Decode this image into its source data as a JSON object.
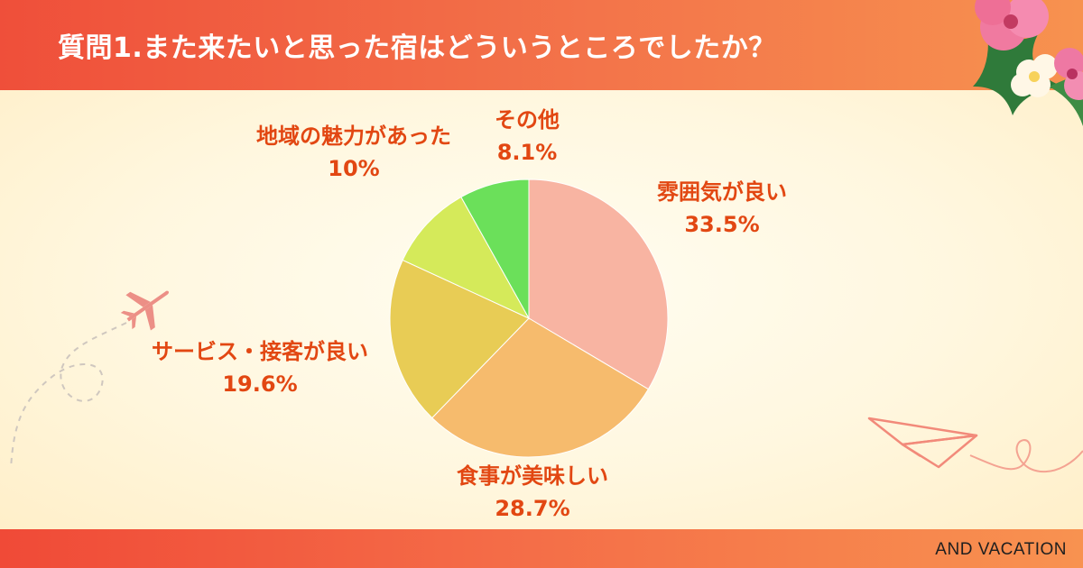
{
  "header": {
    "title": "質問1.また来たいと思った宿はどういうところでしたか？"
  },
  "footer": {
    "brand": "AND VACATION"
  },
  "colors": {
    "header_gradient": [
      "#ef4f3a",
      "#f7924f"
    ],
    "label_text": "#e24712"
  },
  "chart_data": {
    "type": "pie",
    "title": "質問1.また来たいと思った宿はどういうところでしたか？",
    "slices": [
      {
        "label": "雰囲気が良い",
        "value": 33.5,
        "value_label": "33.5%",
        "color": "#f8b4a2"
      },
      {
        "label": "食事が美味しい",
        "value": 28.7,
        "value_label": "28.7%",
        "color": "#f6bb6d"
      },
      {
        "label": "サービス・接客が良い",
        "value": 19.6,
        "value_label": "19.6%",
        "color": "#e8cc55"
      },
      {
        "label": "地域の魅力があった",
        "value": 10,
        "value_label": "10%",
        "color": "#d5ea5a"
      },
      {
        "label": "その他",
        "value": 8.1,
        "value_label": "8.1%",
        "color": "#6be05a"
      }
    ],
    "start": "12 o'clock",
    "direction": "clockwise"
  }
}
